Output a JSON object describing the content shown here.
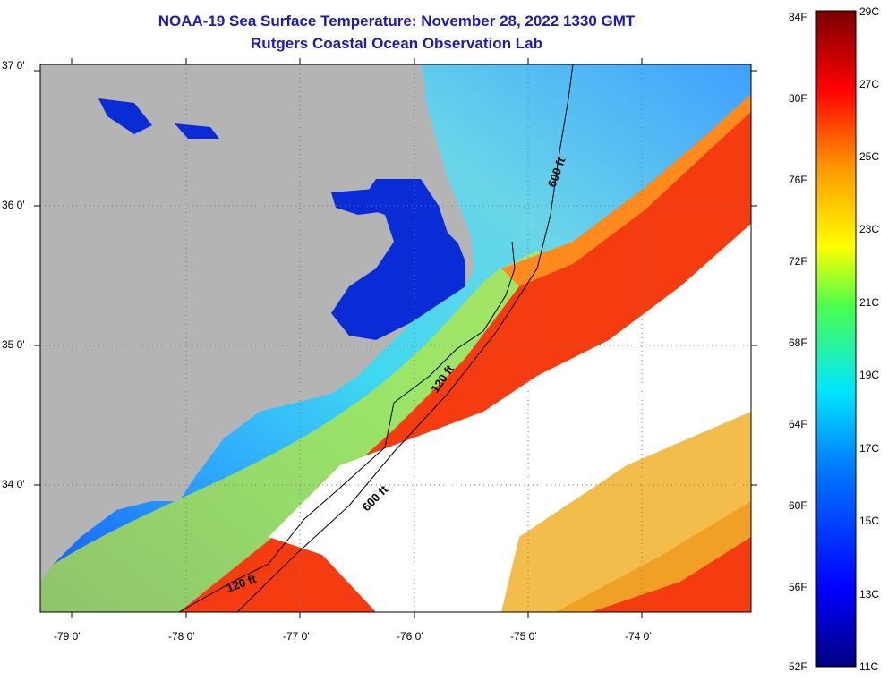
{
  "title": {
    "line1": "NOAA-19 Sea Surface Temperature:  November 28, 2022 1330 GMT",
    "line2": "Rutgers Coastal Ocean Observation Lab"
  },
  "map": {
    "lat_labels": [
      "37 0'",
      "36 0'",
      "35 0'",
      "34 0'"
    ],
    "lon_labels": [
      "-79 0'",
      "-78 0'",
      "-77 0'",
      "-76 0'",
      "-75 0'",
      "-74 0'"
    ],
    "isobath_labels": [
      "600 ft",
      "120 ft",
      "600 ft",
      "120 ft"
    ],
    "colors": {
      "land": "#b4b4b4",
      "cloud": "#ffffff",
      "inland_water": "#0a2cd6"
    }
  },
  "colorbar": {
    "f_labels": [
      "84F",
      "80F",
      "76F",
      "72F",
      "68F",
      "64F",
      "60F",
      "56F",
      "52F"
    ],
    "c_labels": [
      "29C",
      "27C",
      "25C",
      "23C",
      "21C",
      "19C",
      "17C",
      "15C",
      "13C",
      "11C"
    ],
    "colors": [
      "#00007f",
      "#0000ff",
      "#0078ff",
      "#00e5ff",
      "#4cff4c",
      "#ffff00",
      "#ff9900",
      "#ff0000",
      "#7a0000"
    ]
  }
}
